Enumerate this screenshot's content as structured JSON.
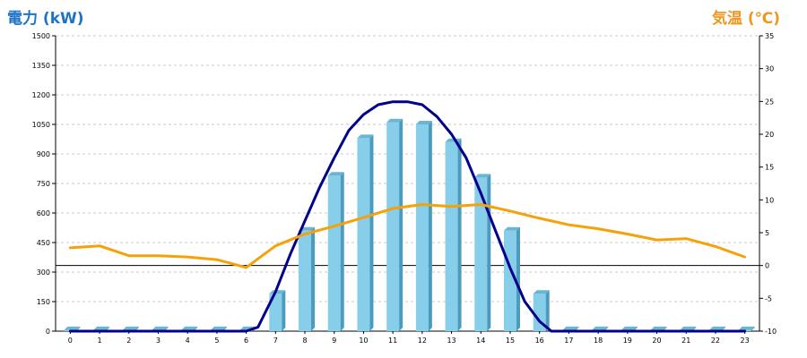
{
  "chart_data": {
    "type": "bar",
    "title_left": "電力 (kW)",
    "title_right": "気温 (℃)",
    "categories": [
      "0",
      "1",
      "2",
      "3",
      "4",
      "5",
      "6",
      "7",
      "8",
      "9",
      "10",
      "11",
      "12",
      "13",
      "14",
      "15",
      "16",
      "17",
      "18",
      "19",
      "20",
      "21",
      "22",
      "23"
    ],
    "y_left": {
      "min": 0,
      "max": 1500,
      "ticks": [
        0,
        150,
        300,
        450,
        600,
        750,
        900,
        1050,
        1200,
        1350,
        1500
      ]
    },
    "y_right": {
      "min": -10,
      "max": 35,
      "ticks": [
        -10,
        -5,
        0,
        5,
        10,
        15,
        20,
        25,
        30,
        35
      ]
    },
    "grid": true,
    "series": [
      {
        "kind": "bar",
        "axis": "left",
        "color": "#87ceeb",
        "values": [
          5,
          5,
          5,
          5,
          5,
          5,
          5,
          190,
          510,
          790,
          980,
          1060,
          1050,
          960,
          780,
          510,
          190,
          5,
          5,
          5,
          5,
          5,
          5,
          5
        ]
      },
      {
        "kind": "line",
        "axis": "left",
        "color": "#00008b",
        "x": [
          0,
          1,
          2,
          3,
          4,
          5,
          6,
          6.4,
          7,
          7.5,
          8,
          8.5,
          9,
          9.5,
          10,
          10.5,
          11,
          11.5,
          12,
          12.5,
          13,
          13.5,
          14,
          14.5,
          15,
          15.5,
          16,
          16.4,
          17,
          18,
          19,
          20,
          21,
          22,
          23
        ],
        "values": [
          0,
          0,
          0,
          0,
          0,
          0,
          0,
          20,
          200,
          390,
          560,
          730,
          880,
          1020,
          1100,
          1150,
          1165,
          1165,
          1150,
          1090,
          1000,
          880,
          700,
          510,
          320,
          150,
          50,
          0,
          0,
          0,
          0,
          0,
          0,
          0,
          0
        ]
      },
      {
        "kind": "line",
        "axis": "right",
        "color": "#f5a20a",
        "values": [
          2.7,
          3.0,
          1.5,
          1.5,
          1.3,
          0.9,
          -0.3,
          3.0,
          4.8,
          6.0,
          7.3,
          8.7,
          9.3,
          9.0,
          9.3,
          8.3,
          7.2,
          6.2,
          5.6,
          4.8,
          3.9,
          4.1,
          2.9,
          1.3
        ]
      }
    ]
  }
}
